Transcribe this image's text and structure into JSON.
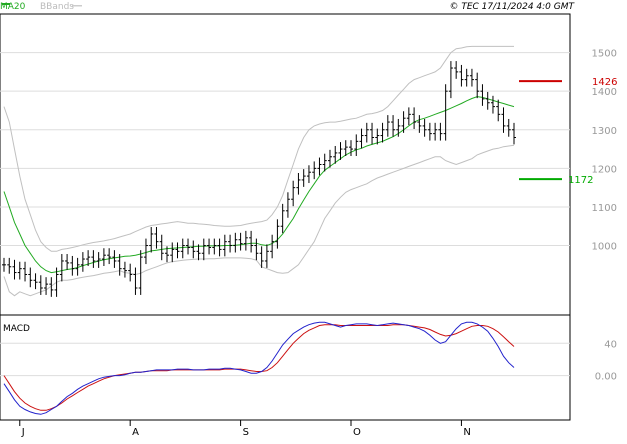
{
  "header": {
    "legend_ma20": "MA20",
    "legend_bbands": "BBands",
    "copyright": "© TEC 17/11/2024 4:0 GMT"
  },
  "colors": {
    "price": "#000000",
    "ma20": "#22aa22",
    "bands": "#c0c0c0",
    "macd": "#2222cc",
    "signal": "#cc1111",
    "resistance": "#cc0000",
    "support": "#00aa00",
    "grid": "#dddddd",
    "frame": "#000000"
  },
  "chart_data": [
    {
      "type": "ohlc",
      "ylim": [
        820,
        1600
      ],
      "yticks": [
        "1500",
        "1400",
        "1300",
        "1200",
        "1100",
        "1000"
      ],
      "xticks": [
        "J",
        "A",
        "S",
        "O",
        "N"
      ],
      "xtick_index": [
        3,
        24,
        45,
        66,
        87
      ],
      "resistance": {
        "label": "1426",
        "value": 1426
      },
      "support": {
        "label": "1172",
        "value": 1172
      },
      "close": [
        950,
        945,
        930,
        940,
        925,
        910,
        905,
        890,
        900,
        885,
        925,
        960,
        955,
        940,
        950,
        965,
        970,
        960,
        965,
        975,
        970,
        960,
        940,
        935,
        925,
        890,
        970,
        1000,
        1030,
        1010,
        980,
        975,
        990,
        985,
        1000,
        995,
        985,
        980,
        1000,
        995,
        1000,
        990,
        1010,
        1000,
        1015,
        1005,
        1020,
        1000,
        980,
        960,
        985,
        1010,
        1050,
        1090,
        1120,
        1150,
        1170,
        1180,
        1190,
        1200,
        1210,
        1220,
        1230,
        1240,
        1250,
        1255,
        1250,
        1270,
        1285,
        1300,
        1280,
        1285,
        1300,
        1320,
        1300,
        1310,
        1330,
        1340,
        1320,
        1310,
        1300,
        1290,
        1300,
        1290,
        1400,
        1460,
        1450,
        1430,
        1440,
        1430,
        1400,
        1380,
        1370,
        1360,
        1340,
        1310,
        1300,
        1280
      ],
      "ma20": [
        1140,
        1100,
        1060,
        1030,
        1000,
        980,
        960,
        945,
        935,
        930,
        932,
        935,
        938,
        940,
        943,
        948,
        952,
        956,
        960,
        963,
        966,
        968,
        970,
        972,
        973,
        975,
        978,
        982,
        986,
        988,
        990,
        992,
        993,
        994,
        995,
        996,
        997,
        998,
        998,
        999,
        999,
        999,
        1000,
        1000,
        1001,
        1002,
        1004,
        1006,
        1006,
        1002,
        1000,
        1005,
        1015,
        1030,
        1050,
        1070,
        1095,
        1118,
        1140,
        1160,
        1180,
        1195,
        1205,
        1215,
        1225,
        1235,
        1242,
        1248,
        1252,
        1258,
        1262,
        1266,
        1270,
        1276,
        1282,
        1290,
        1300,
        1310,
        1320,
        1326,
        1330,
        1335,
        1340,
        1345,
        1350,
        1356,
        1362,
        1368,
        1375,
        1381,
        1386,
        1384,
        1380,
        1376,
        1372,
        1368,
        1364,
        1360
      ],
      "upper_band": [
        1360,
        1320,
        1250,
        1180,
        1120,
        1080,
        1040,
        1010,
        995,
        985,
        985,
        990,
        992,
        995,
        998,
        1002,
        1005,
        1008,
        1010,
        1012,
        1015,
        1018,
        1022,
        1026,
        1030,
        1036,
        1042,
        1048,
        1052,
        1054,
        1056,
        1058,
        1060,
        1062,
        1060,
        1058,
        1058,
        1056,
        1055,
        1054,
        1052,
        1051,
        1050,
        1050,
        1051,
        1052,
        1055,
        1058,
        1060,
        1062,
        1066,
        1080,
        1100,
        1130,
        1170,
        1210,
        1250,
        1280,
        1300,
        1310,
        1315,
        1318,
        1320,
        1320,
        1322,
        1325,
        1328,
        1330,
        1335,
        1340,
        1342,
        1345,
        1350,
        1360,
        1375,
        1390,
        1405,
        1420,
        1430,
        1435,
        1440,
        1445,
        1450,
        1460,
        1480,
        1500,
        1510,
        1512,
        1515,
        1516,
        1516,
        1516,
        1516,
        1516,
        1516,
        1516,
        1516,
        1516
      ],
      "lower_band": [
        920,
        880,
        870,
        880,
        875,
        870,
        875,
        880,
        885,
        895,
        905,
        910,
        910,
        912,
        915,
        918,
        920,
        922,
        925,
        928,
        930,
        932,
        935,
        930,
        928,
        925,
        928,
        935,
        940,
        945,
        950,
        955,
        958,
        960,
        962,
        963,
        964,
        965,
        965,
        966,
        966,
        967,
        968,
        968,
        968,
        968,
        967,
        966,
        962,
        945,
        940,
        935,
        930,
        928,
        930,
        940,
        950,
        970,
        990,
        1010,
        1040,
        1070,
        1090,
        1110,
        1125,
        1138,
        1145,
        1150,
        1155,
        1160,
        1168,
        1175,
        1180,
        1185,
        1190,
        1195,
        1200,
        1205,
        1210,
        1215,
        1220,
        1225,
        1230,
        1230,
        1220,
        1215,
        1210,
        1215,
        1220,
        1225,
        1235,
        1240,
        1245,
        1250,
        1252,
        1256,
        1258,
        1260
      ]
    },
    {
      "type": "line",
      "label": "MACD",
      "ylim": [
        -55,
        75
      ],
      "yticks": [
        "40",
        "0.00"
      ],
      "ytick_values": [
        40,
        0
      ],
      "series": [
        {
          "values": [
            -10,
            -20,
            -30,
            -38,
            -42,
            -45,
            -47,
            -48,
            -46,
            -42,
            -38,
            -32,
            -26,
            -22,
            -17,
            -13,
            -10,
            -7,
            -4,
            -2,
            -1,
            0,
            0,
            1,
            3,
            4,
            4,
            5,
            6,
            7,
            7,
            7,
            7,
            8,
            8,
            8,
            7,
            7,
            7,
            8,
            8,
            8,
            9,
            9,
            8,
            7,
            5,
            3,
            3,
            5,
            10,
            18,
            28,
            38,
            45,
            52,
            56,
            60,
            63,
            65,
            66,
            66,
            64,
            62,
            60,
            62,
            63,
            64,
            64,
            64,
            63,
            62,
            63,
            64,
            65,
            64,
            63,
            62,
            60,
            58,
            55,
            50,
            44,
            40,
            42,
            50,
            58,
            64,
            66,
            66,
            64,
            60,
            55,
            46,
            36,
            24,
            16,
            10
          ]
        },
        {
          "values": [
            0,
            -10,
            -20,
            -28,
            -34,
            -38,
            -41,
            -43,
            -43,
            -41,
            -38,
            -34,
            -29,
            -25,
            -21,
            -17,
            -13,
            -10,
            -7,
            -4,
            -2,
            0,
            1,
            2,
            3,
            4,
            4,
            5,
            6,
            6,
            6,
            6,
            7,
            7,
            7,
            7,
            7,
            7,
            7,
            7,
            7,
            7,
            8,
            8,
            8,
            8,
            7,
            6,
            5,
            5,
            6,
            10,
            16,
            24,
            32,
            40,
            46,
            52,
            56,
            59,
            62,
            63,
            63,
            63,
            62,
            62,
            62,
            62,
            62,
            62,
            62,
            62,
            62,
            62,
            63,
            63,
            63,
            62,
            61,
            60,
            59,
            57,
            54,
            51,
            49,
            50,
            52,
            55,
            58,
            61,
            62,
            62,
            61,
            58,
            54,
            48,
            42,
            36
          ]
        }
      ]
    }
  ]
}
